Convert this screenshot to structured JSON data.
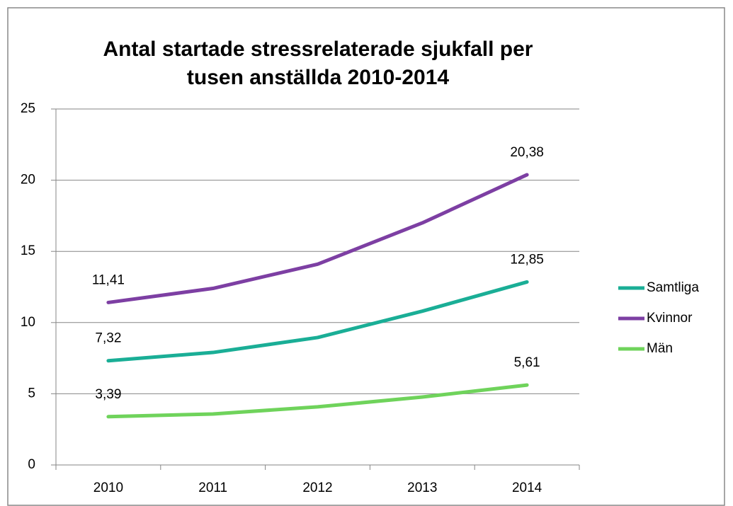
{
  "chart_data": {
    "type": "line",
    "title": "Antal startade stressrelaterade sjukfall per tusen anställda 2010-2014",
    "categories": [
      "2010",
      "2011",
      "2012",
      "2013",
      "2014"
    ],
    "series": [
      {
        "name": "Samtliga",
        "color": "#1aae96",
        "values": [
          7.32,
          7.9,
          8.95,
          10.8,
          12.85
        ],
        "value_labels": [
          "7,32",
          null,
          null,
          null,
          "12,85"
        ]
      },
      {
        "name": "Kvinnor",
        "color": "#7d3fa3",
        "values": [
          11.41,
          12.4,
          14.1,
          17.0,
          20.38
        ],
        "value_labels": [
          "11,41",
          null,
          null,
          null,
          "20,38"
        ]
      },
      {
        "name": "Män",
        "color": "#6fd35b",
        "values": [
          3.39,
          3.58,
          4.08,
          4.77,
          5.61
        ],
        "value_labels": [
          "3,39",
          null,
          null,
          null,
          "5,61"
        ]
      }
    ],
    "ylim": [
      0,
      25
    ],
    "yticks": [
      0,
      5,
      10,
      15,
      20,
      25
    ],
    "grid": true,
    "legend": "right"
  }
}
